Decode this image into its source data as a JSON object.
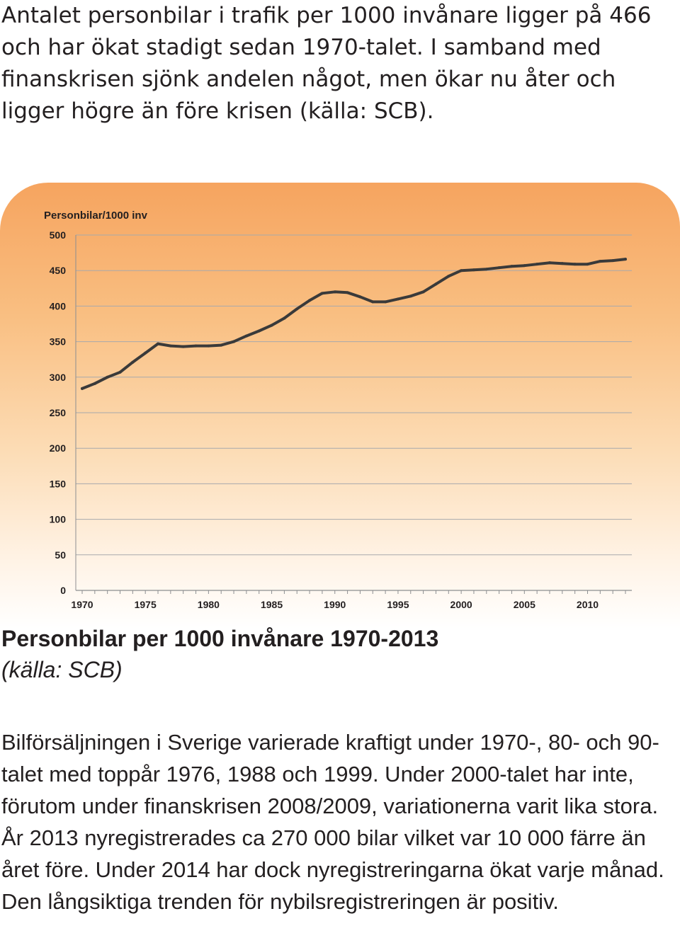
{
  "intro_text": "Antalet personbilar i trafik per 1000 invånare ligger på 466 och har ökat stadigt sedan 1970-talet. I samband med finanskrisen sjönk andelen något, men ökar nu åter och ligger högre än före krisen (källa: SCB).",
  "caption": {
    "title": "Personbilar per 1000 invånare 1970-2013",
    "source": "(källa: SCB)"
  },
  "body_text": "Bilförsäljningen i Sverige varierade kraftigt under 1970-, 80- och 90-talet med toppår 1976, 1988 och 1999. Under 2000-talet har inte, förutom under finanskrisen 2008/2009, variationerna varit lika stora. År 2013 nyregistrerades ca 270 000 bilar vilket var 10 000 färre än året före. Under 2014 har dock nyregistreringarna ökat varje månad. Den långsiktiga trenden för nybilsregistreringen är positiv.",
  "chart_data": {
    "type": "line",
    "ylabel": "Personbilar/1000 inv",
    "xlabel": "",
    "ylim": [
      0,
      500
    ],
    "xlim": [
      1970,
      2013
    ],
    "yticks": [
      0,
      50,
      100,
      150,
      200,
      250,
      300,
      350,
      400,
      450,
      500
    ],
    "xticks": [
      1970,
      1975,
      1980,
      1985,
      1990,
      1995,
      2000,
      2005,
      2010
    ],
    "grid": "horizontal",
    "line_color": "#3a3a3a",
    "series": [
      {
        "x": [
          1970,
          1971,
          1972,
          1973,
          1974,
          1975,
          1976,
          1977,
          1978,
          1979,
          1980,
          1981,
          1982,
          1983,
          1984,
          1985,
          1986,
          1987,
          1988,
          1989,
          1990,
          1991,
          1992,
          1993,
          1994,
          1995,
          1996,
          1997,
          1998,
          1999,
          2000,
          2001,
          2002,
          2003,
          2004,
          2005,
          2006,
          2007,
          2008,
          2009,
          2010,
          2011,
          2012,
          2013
        ],
        "values": [
          284,
          291,
          300,
          307,
          321,
          334,
          347,
          344,
          343,
          344,
          344,
          345,
          350,
          358,
          365,
          373,
          383,
          396,
          408,
          418,
          420,
          419,
          413,
          406,
          406,
          410,
          414,
          420,
          431,
          442,
          450,
          451,
          452,
          454,
          456,
          457,
          459,
          461,
          460,
          459,
          459,
          463,
          464,
          466
        ]
      }
    ]
  }
}
